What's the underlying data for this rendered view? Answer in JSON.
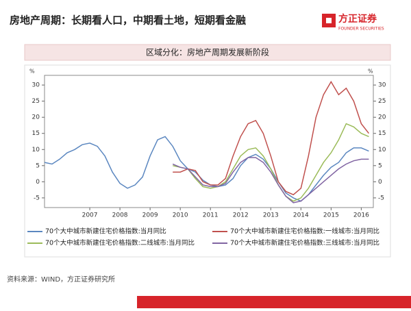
{
  "header": {
    "title": "房地产周期：长期看人口，中期看土地，短期看金融",
    "logo": "方正证券",
    "logo_sub": "FOUNDER SECURITIES"
  },
  "subtitle": "区域分化：房地产周期发展新阶段",
  "source": "资料来源：WIND，方正证券研究所",
  "chart_data": {
    "type": "line",
    "y_label": "%",
    "y2_label": "%",
    "x": [
      2006,
      2006.25,
      2006.5,
      2006.75,
      2007,
      2007.25,
      2007.5,
      2007.75,
      2008,
      2008.25,
      2008.5,
      2008.75,
      2009,
      2009.25,
      2009.5,
      2009.75,
      2010,
      2010.25,
      2010.5,
      2010.75,
      2011,
      2011.25,
      2011.5,
      2011.75,
      2012,
      2012.25,
      2012.5,
      2012.75,
      2013,
      2013.25,
      2013.5,
      2013.75,
      2014,
      2014.25,
      2014.5,
      2014.75,
      2015,
      2015.25,
      2015.5,
      2015.75,
      2016,
      2016.25,
      2016.5,
      2016.75
    ],
    "xlim": [
      2006,
      2016.9
    ],
    "xticks": [
      {
        "value": 2007.5,
        "label": "2007"
      },
      {
        "value": 2008.5,
        "label": "2008"
      },
      {
        "value": 2009.5,
        "label": "2009"
      },
      {
        "value": 2010.5,
        "label": "2010"
      },
      {
        "value": 2011.5,
        "label": "2011"
      },
      {
        "value": 2012.5,
        "label": "2012"
      },
      {
        "value": 2013.5,
        "label": "2013"
      },
      {
        "value": 2014.5,
        "label": "2014"
      },
      {
        "value": 2015.5,
        "label": "2015"
      },
      {
        "value": 2016.5,
        "label": "2016"
      }
    ],
    "ylim": [
      -8,
      33
    ],
    "yticks": [
      -5,
      0,
      5,
      10,
      15,
      20,
      25,
      30
    ],
    "series": [
      {
        "name": "70个大中城市新建住宅价格指数:当月同比",
        "color": "#5b87c0",
        "values": [
          6,
          5.5,
          7,
          9,
          10,
          11.5,
          12,
          11,
          8,
          3,
          -0.5,
          -2,
          -1,
          1.5,
          8,
          13,
          14,
          11,
          6.5,
          4,
          3,
          0.5,
          -1,
          -1.5,
          -1,
          1,
          5,
          7.5,
          8.5,
          7,
          4,
          0,
          -3.5,
          -5,
          -6,
          -4,
          -1,
          2,
          4.5,
          6,
          9,
          10.5,
          10.5,
          9.5
        ]
      },
      {
        "name": "70个大中城市新建住宅价格指数:一线城市:当月同比",
        "color": "#c0504d",
        "values": [
          null,
          null,
          null,
          null,
          null,
          null,
          null,
          null,
          null,
          null,
          null,
          null,
          null,
          null,
          null,
          null,
          null,
          3,
          3,
          4,
          3.5,
          0,
          -1,
          -1,
          1,
          8,
          14,
          18,
          19,
          15,
          8,
          0,
          -3,
          -4,
          -2,
          8,
          20,
          27,
          31,
          27,
          29,
          25,
          18,
          15
        ]
      },
      {
        "name": "70个大中城市新建住宅价格指数:二线城市:当月同比",
        "color": "#9bbb59",
        "values": [
          null,
          null,
          null,
          null,
          null,
          null,
          null,
          null,
          null,
          null,
          null,
          null,
          null,
          null,
          null,
          null,
          null,
          5,
          4.5,
          4,
          1,
          -1.5,
          -2,
          -1.5,
          0,
          4,
          8,
          10,
          10.5,
          8,
          4,
          -1,
          -4.5,
          -6,
          -5,
          -2,
          2,
          6,
          9,
          13,
          18,
          17,
          15,
          14
        ]
      },
      {
        "name": "70个大中城市新建住宅价格指数:三线城市:当月同比",
        "color": "#8064a2",
        "values": [
          null,
          null,
          null,
          null,
          null,
          null,
          null,
          null,
          null,
          null,
          null,
          null,
          null,
          null,
          null,
          null,
          null,
          5.5,
          4.5,
          4,
          1.5,
          -1,
          -1.5,
          -1.5,
          -0.5,
          3,
          6,
          7.5,
          7.5,
          6,
          3,
          -1,
          -4.5,
          -6.5,
          -6,
          -4,
          -2,
          0,
          2,
          4,
          5.5,
          6.5,
          7,
          7
        ]
      }
    ]
  }
}
